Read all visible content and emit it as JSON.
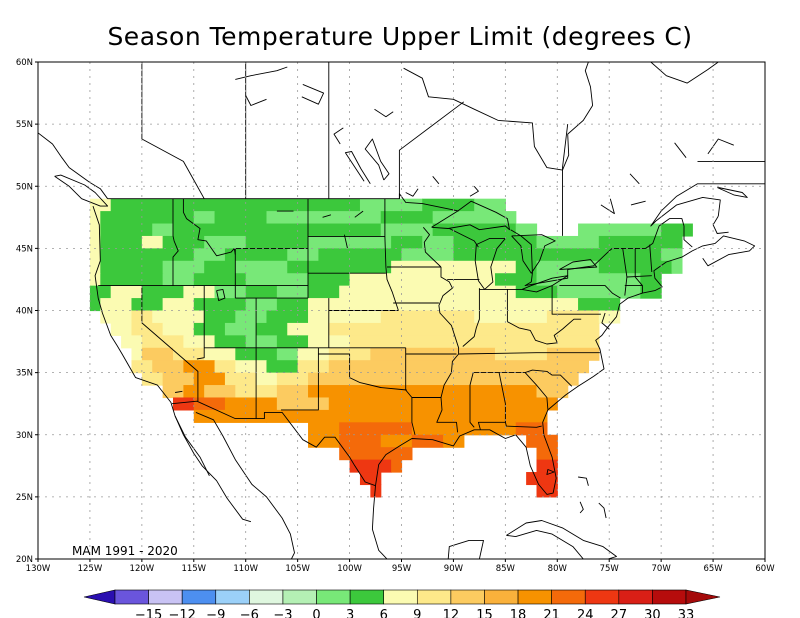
{
  "title": "Season Temperature Upper Limit (degrees C)",
  "period_label": "MAM 1991 - 2020",
  "axes": {
    "lon_ticks": [
      "130W",
      "125W",
      "120W",
      "115W",
      "110W",
      "105W",
      "100W",
      "95W",
      "90W",
      "85W",
      "80W",
      "75W",
      "70W",
      "65W",
      "60W"
    ],
    "lat_ticks": [
      "20N",
      "25N",
      "30N",
      "35N",
      "40N",
      "45N",
      "50N",
      "55N",
      "60N"
    ],
    "lon_range": [
      -130,
      -60
    ],
    "lat_range": [
      20,
      60
    ],
    "grid": true
  },
  "colorbar": {
    "ticks": [
      "-15",
      "-12",
      "-9",
      "-6",
      "-3",
      "0",
      "3",
      "6",
      "9",
      "12",
      "15",
      "18",
      "21",
      "24",
      "27",
      "30",
      "33"
    ],
    "under_color": "#2a0fb0",
    "over_color": "#a40a0a",
    "colors": [
      "#6a55dc",
      "#c9c3f4",
      "#4d8ff0",
      "#9bd0f8",
      "#dff7df",
      "#b4f0b4",
      "#78e878",
      "#3cc83c",
      "#fbfbb2",
      "#fde98a",
      "#fccb60",
      "#fab13b",
      "#f79200",
      "#f46a0a",
      "#ee3712",
      "#d91f16",
      "#b60c0c"
    ]
  },
  "legend_bins": [
    {
      "key": 12,
      "range": "9 to 12",
      "color": "#fbfbb2"
    },
    {
      "key": 15,
      "range": "12 to 15",
      "color": "#fde98a"
    },
    {
      "key": 18,
      "range": "15 to 18",
      "color": "#fccb60"
    },
    {
      "key": 21,
      "range": "18 to 21",
      "color": "#f79200"
    },
    {
      "key": 24,
      "range": "21 to 24",
      "color": "#f46a0a"
    },
    {
      "key": 27,
      "range": "24 to 27",
      "color": "#ee3712"
    },
    {
      "key": 6,
      "range": "3 to 6",
      "color": "#78e878"
    },
    {
      "key": 9,
      "range": "6 to 9",
      "color": "#3cc83c"
    }
  ],
  "grid_rows": [
    {
      "lat": 48,
      "segments": [
        [
          -125,
          -123,
          12
        ],
        [
          -123,
          -99,
          9
        ],
        [
          -99,
          -93,
          6
        ],
        [
          -93,
          -88,
          9
        ],
        [
          -88,
          -85,
          6
        ]
      ]
    },
    {
      "lat": 47,
      "segments": [
        [
          -125,
          -124,
          12
        ],
        [
          -124,
          -115,
          9
        ],
        [
          -115,
          -113,
          6
        ],
        [
          -113,
          -108,
          9
        ],
        [
          -108,
          -97,
          6
        ],
        [
          -97,
          -92,
          9
        ],
        [
          -92,
          -84,
          6
        ]
      ]
    },
    {
      "lat": 46,
      "segments": [
        [
          -125,
          -124,
          12
        ],
        [
          -124,
          -119,
          9
        ],
        [
          -119,
          -117,
          6
        ],
        [
          -117,
          -97,
          9
        ],
        [
          -97,
          -92,
          6
        ],
        [
          -92,
          -84,
          9
        ],
        [
          -84,
          -82,
          6
        ],
        [
          -78,
          -70,
          6
        ],
        [
          -70,
          -67,
          9
        ]
      ]
    },
    {
      "lat": 45,
      "segments": [
        [
          -125,
          -124,
          12
        ],
        [
          -124,
          -120,
          9
        ],
        [
          -120,
          -118,
          12
        ],
        [
          -118,
          -114,
          9
        ],
        [
          -114,
          -110,
          6
        ],
        [
          -110,
          -104,
          9
        ],
        [
          -104,
          -96,
          6
        ],
        [
          -96,
          -93,
          9
        ],
        [
          -93,
          -90,
          6
        ],
        [
          -90,
          -82,
          9
        ],
        [
          -82,
          -76,
          6
        ],
        [
          -76,
          -68,
          9
        ]
      ]
    },
    {
      "lat": 44,
      "segments": [
        [
          -125,
          -124,
          12
        ],
        [
          -124,
          -115,
          9
        ],
        [
          -115,
          -112,
          6
        ],
        [
          -112,
          -106,
          9
        ],
        [
          -106,
          -103,
          6
        ],
        [
          -103,
          -95,
          9
        ],
        [
          -95,
          -90,
          6
        ],
        [
          -90,
          -83,
          9
        ],
        [
          -83,
          -70,
          9
        ],
        [
          -70,
          -68,
          6
        ]
      ]
    },
    {
      "lat": 43,
      "segments": [
        [
          -125,
          -124,
          12
        ],
        [
          -124,
          -118,
          9
        ],
        [
          -118,
          -114,
          6
        ],
        [
          -114,
          -111,
          9
        ],
        [
          -111,
          -106,
          6
        ],
        [
          -106,
          -96,
          9
        ],
        [
          -96,
          -84,
          12
        ],
        [
          -84,
          -82,
          9
        ],
        [
          -82,
          -76,
          6
        ],
        [
          -76,
          -69,
          9
        ],
        [
          -69,
          -68,
          6
        ]
      ]
    },
    {
      "lat": 42,
      "segments": [
        [
          -125,
          -124,
          12
        ],
        [
          -124,
          -118,
          9
        ],
        [
          -118,
          -115,
          6
        ],
        [
          -115,
          -110,
          9
        ],
        [
          -110,
          -104,
          6
        ],
        [
          -104,
          -100,
          9
        ],
        [
          -100,
          -86,
          12
        ],
        [
          -86,
          -82,
          9
        ],
        [
          -82,
          -72,
          6
        ],
        [
          -72,
          -70,
          9
        ]
      ]
    },
    {
      "lat": 41,
      "segments": [
        [
          -125,
          -123,
          9
        ],
        [
          -123,
          -120,
          12
        ],
        [
          -120,
          -116,
          9
        ],
        [
          -116,
          -113,
          12
        ],
        [
          -113,
          -110,
          6
        ],
        [
          -110,
          -107,
          9
        ],
        [
          -107,
          -104,
          6
        ],
        [
          -104,
          -101,
          9
        ],
        [
          -101,
          -84,
          12
        ],
        [
          -84,
          -80,
          9
        ],
        [
          -80,
          -72,
          6
        ],
        [
          -72,
          -70,
          9
        ]
      ]
    },
    {
      "lat": 40,
      "segments": [
        [
          -125,
          -124,
          9
        ],
        [
          -124,
          -121,
          12
        ],
        [
          -121,
          -118,
          9
        ],
        [
          -118,
          -115,
          12
        ],
        [
          -115,
          -110,
          9
        ],
        [
          -110,
          -107,
          6
        ],
        [
          -107,
          -104,
          9
        ],
        [
          -104,
          -100,
          12
        ],
        [
          -100,
          -84,
          12
        ],
        [
          -84,
          -78,
          12
        ],
        [
          -78,
          -74,
          9
        ]
      ]
    },
    {
      "lat": 39,
      "segments": [
        [
          -124,
          -121,
          12
        ],
        [
          -121,
          -119,
          15
        ],
        [
          -119,
          -114,
          12
        ],
        [
          -114,
          -111,
          9
        ],
        [
          -111,
          -108,
          6
        ],
        [
          -108,
          -104,
          9
        ],
        [
          -104,
          -97,
          12
        ],
        [
          -97,
          -88,
          15
        ],
        [
          -88,
          -81,
          12
        ],
        [
          -81,
          -76,
          15
        ],
        [
          -76,
          -74,
          12
        ]
      ]
    },
    {
      "lat": 38,
      "segments": [
        [
          -123,
          -121,
          12
        ],
        [
          -121,
          -118,
          15
        ],
        [
          -118,
          -115,
          12
        ],
        [
          -115,
          -112,
          9
        ],
        [
          -112,
          -109,
          6
        ],
        [
          -109,
          -106,
          9
        ],
        [
          -106,
          -102,
          12
        ],
        [
          -102,
          -90,
          15
        ],
        [
          -90,
          -84,
          15
        ],
        [
          -84,
          -76,
          15
        ]
      ]
    },
    {
      "lat": 37,
      "segments": [
        [
          -122,
          -120,
          12
        ],
        [
          -120,
          -116,
          15
        ],
        [
          -116,
          -113,
          12
        ],
        [
          -113,
          -110,
          9
        ],
        [
          -110,
          -107,
          6
        ],
        [
          -107,
          -104,
          9
        ],
        [
          -104,
          -100,
          12
        ],
        [
          -100,
          -88,
          15
        ],
        [
          -88,
          -80,
          15
        ],
        [
          -80,
          -76,
          15
        ]
      ]
    },
    {
      "lat": 36,
      "segments": [
        [
          -121,
          -120,
          12
        ],
        [
          -120,
          -117,
          18
        ],
        [
          -117,
          -114,
          15
        ],
        [
          -114,
          -111,
          12
        ],
        [
          -111,
          -107,
          9
        ],
        [
          -107,
          -105,
          6
        ],
        [
          -105,
          -102,
          12
        ],
        [
          -102,
          -98,
          15
        ],
        [
          -98,
          -86,
          18
        ],
        [
          -86,
          -81,
          15
        ],
        [
          -81,
          -76,
          18
        ]
      ]
    },
    {
      "lat": 35,
      "segments": [
        [
          -121,
          -119,
          15
        ],
        [
          -119,
          -116,
          18
        ],
        [
          -116,
          -113,
          21
        ],
        [
          -113,
          -111,
          15
        ],
        [
          -111,
          -108,
          12
        ],
        [
          -108,
          -105,
          9
        ],
        [
          -105,
          -102,
          15
        ],
        [
          -102,
          -90,
          18
        ],
        [
          -90,
          -84,
          18
        ],
        [
          -84,
          -77,
          18
        ]
      ]
    },
    {
      "lat": 34,
      "segments": [
        [
          -120,
          -118,
          15
        ],
        [
          -118,
          -115,
          18
        ],
        [
          -115,
          -112,
          21
        ],
        [
          -112,
          -109,
          15
        ],
        [
          -109,
          -107,
          12
        ],
        [
          -107,
          -104,
          15
        ],
        [
          -104,
          -98,
          18
        ],
        [
          -98,
          -80,
          18
        ],
        [
          -80,
          -78,
          18
        ]
      ]
    },
    {
      "lat": 33,
      "segments": [
        [
          -118,
          -116,
          18
        ],
        [
          -116,
          -114,
          21
        ],
        [
          -114,
          -111,
          18
        ],
        [
          -111,
          -107,
          15
        ],
        [
          -107,
          -104,
          18
        ],
        [
          -104,
          -98,
          21
        ],
        [
          -98,
          -82,
          21
        ],
        [
          -82,
          -79,
          18
        ]
      ]
    },
    {
      "lat": 32,
      "segments": [
        [
          -117,
          -115,
          27
        ],
        [
          -115,
          -112,
          24
        ],
        [
          -112,
          -107,
          21
        ],
        [
          -107,
          -102,
          18
        ],
        [
          -102,
          -94,
          21
        ],
        [
          -94,
          -85,
          21
        ],
        [
          -85,
          -80,
          21
        ]
      ]
    },
    {
      "lat": 31,
      "segments": [
        [
          -115,
          -113,
          21
        ],
        [
          -113,
          -108,
          21
        ],
        [
          -108,
          -103,
          21
        ],
        [
          -103,
          -96,
          21
        ],
        [
          -96,
          -88,
          21
        ],
        [
          -88,
          -81,
          21
        ]
      ]
    },
    {
      "lat": 30,
      "segments": [
        [
          -104,
          -101,
          21
        ],
        [
          -101,
          -98,
          24
        ],
        [
          -98,
          -94,
          24
        ],
        [
          -94,
          -91,
          21
        ],
        [
          -91,
          -87,
          21
        ],
        [
          -87,
          -84,
          21
        ],
        [
          -84,
          -81,
          24
        ]
      ]
    },
    {
      "lat": 29,
      "segments": [
        [
          -104,
          -101,
          21
        ],
        [
          -101,
          -99,
          24
        ],
        [
          -99,
          -97,
          24
        ],
        [
          -97,
          -94,
          21
        ],
        [
          -94,
          -91,
          24
        ],
        [
          -91,
          -89,
          21
        ],
        [
          -83,
          -80,
          24
        ]
      ]
    },
    {
      "lat": 28,
      "segments": [
        [
          -101,
          -96,
          24
        ],
        [
          -96,
          -94,
          24
        ],
        [
          -82,
          -80,
          24
        ]
      ]
    },
    {
      "lat": 27,
      "segments": [
        [
          -100,
          -96,
          27
        ],
        [
          -96,
          -95,
          24
        ],
        [
          -82,
          -80,
          27
        ]
      ]
    },
    {
      "lat": 26,
      "segments": [
        [
          -99,
          -97,
          27
        ],
        [
          -83,
          -80,
          27
        ]
      ]
    },
    {
      "lat": 25,
      "segments": [
        [
          -98,
          -97,
          27
        ],
        [
          -82,
          -80,
          27
        ]
      ]
    }
  ]
}
